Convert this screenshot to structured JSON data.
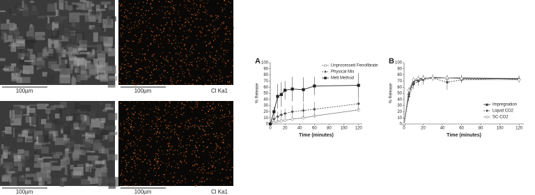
{
  "images": {
    "panels": [
      {
        "scale": "100µm",
        "map": false
      },
      {
        "scale": "100µm",
        "map": true,
        "element": "Cl Ka1"
      },
      {
        "scale": "100µm",
        "map": false
      },
      {
        "scale": "100µm",
        "map": true,
        "element": "Cl Ka1"
      }
    ]
  },
  "chart_data": [
    {
      "type": "line",
      "panel_label": "A",
      "x_label": "Time (minutes)",
      "y_label": "% Release",
      "x": [
        0,
        5,
        10,
        15,
        20,
        30,
        45,
        60,
        120
      ],
      "xlim": [
        0,
        125
      ],
      "xticks": [
        0,
        20,
        40,
        60,
        80,
        100,
        120
      ],
      "ylim": [
        0,
        100
      ],
      "yticks": [
        0,
        10,
        20,
        30,
        40,
        50,
        60,
        70,
        80,
        90,
        100
      ],
      "legend": "top-right",
      "series": [
        {
          "name": "Unprocessed Fenofibrate",
          "color": "#888888",
          "marker": "circle-open",
          "dash": false,
          "values": [
            0,
            2,
            4,
            5,
            6,
            8,
            10,
            13,
            23
          ],
          "errors": [
            0,
            2,
            2,
            2,
            2,
            3,
            3,
            3,
            3
          ]
        },
        {
          "name": "Physical Mix",
          "color": "#555555",
          "marker": "diamond",
          "dash": true,
          "values": [
            0,
            8,
            12,
            15,
            17,
            20,
            22,
            24,
            33
          ],
          "errors": [
            0,
            5,
            8,
            8,
            8,
            10,
            12,
            12,
            10
          ]
        },
        {
          "name": "Melt Method",
          "color": "#222222",
          "marker": "square",
          "dash": false,
          "values": [
            0,
            20,
            45,
            48,
            55,
            57,
            56,
            62,
            63
          ],
          "errors": [
            0,
            8,
            20,
            20,
            15,
            20,
            20,
            15,
            20
          ]
        }
      ]
    },
    {
      "type": "line",
      "panel_label": "B",
      "x_label": "Time (minutes)",
      "y_label": "% Release",
      "x": [
        0,
        5,
        10,
        15,
        20,
        30,
        45,
        60,
        120
      ],
      "xlim": [
        0,
        125
      ],
      "xticks": [
        0,
        20,
        40,
        60,
        80,
        100,
        120
      ],
      "ylim": [
        0,
        100
      ],
      "yticks": [
        0,
        10,
        20,
        30,
        40,
        50,
        60,
        70,
        80,
        90,
        100
      ],
      "legend": "bottom-right",
      "series": [
        {
          "name": "Impregnation",
          "color": "#222222",
          "marker": "triangle",
          "dash": false,
          "values": [
            0,
            50,
            70,
            72,
            74,
            76,
            75,
            75,
            74
          ],
          "errors": [
            0,
            5,
            5,
            5,
            5,
            5,
            5,
            5,
            5
          ]
        },
        {
          "name": "Liquid CO2",
          "color": "#444444",
          "marker": "diamond",
          "dash": true,
          "values": [
            0,
            45,
            65,
            70,
            72,
            75,
            68,
            72,
            73
          ],
          "errors": [
            0,
            8,
            8,
            8,
            8,
            5,
            12,
            5,
            5
          ]
        },
        {
          "name": "SC-CO2",
          "color": "#888888",
          "marker": "circle-open",
          "dash": false,
          "values": [
            0,
            55,
            72,
            74,
            75,
            75,
            75,
            74,
            72
          ],
          "errors": [
            0,
            5,
            5,
            5,
            5,
            5,
            5,
            5,
            5
          ]
        }
      ]
    }
  ]
}
